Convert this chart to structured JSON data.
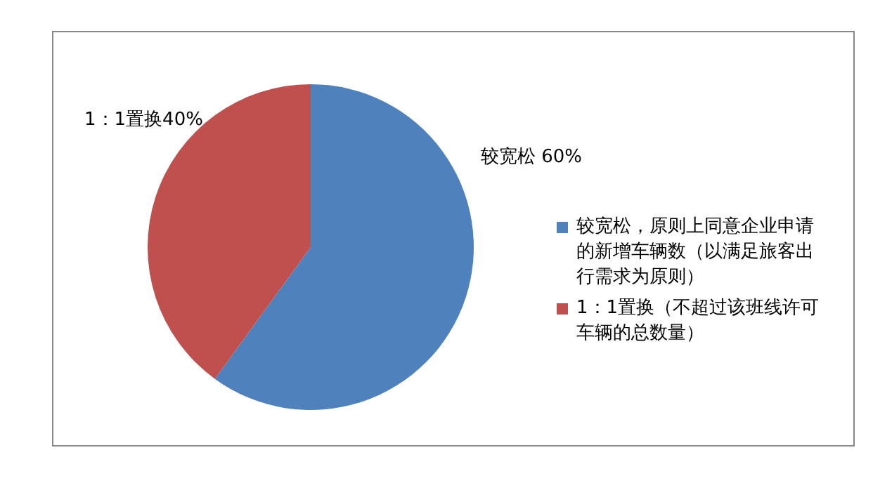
{
  "chart_data": {
    "type": "pie",
    "categories": [
      "较宽松，原则上同意企业申请的新增车辆数（以满足旅客出行需求为原则）",
      "1：1置换（不超过该班线许可车辆的总数量）"
    ],
    "values": [
      60,
      40
    ],
    "colors": [
      "#4f81bd",
      "#c0504d"
    ],
    "value_labels": [
      "较宽松 60%",
      "1：1置换40%"
    ],
    "legend": "right"
  }
}
